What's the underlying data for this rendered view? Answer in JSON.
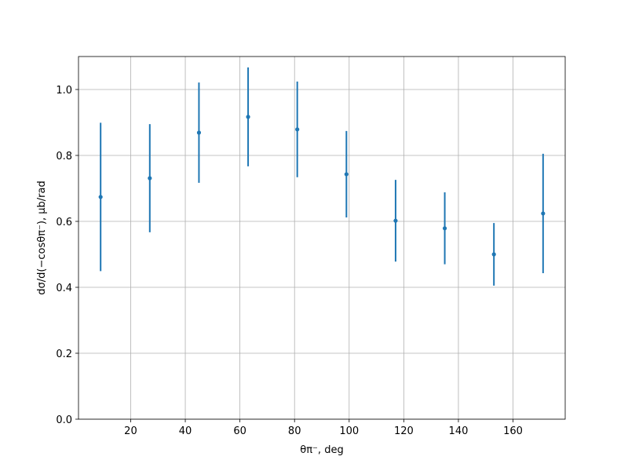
{
  "chart_data": {
    "type": "errorbar",
    "xlabel": "θπ⁻, deg",
    "ylabel": "dσ/d(−cosθπ⁻), μb/rad",
    "x": [
      9,
      27,
      45,
      63,
      81,
      99,
      117,
      135,
      153,
      171
    ],
    "values": [
      0.674,
      0.731,
      0.869,
      0.917,
      0.879,
      0.743,
      0.602,
      0.579,
      0.5,
      0.624
    ],
    "errors": [
      0.225,
      0.164,
      0.152,
      0.15,
      0.145,
      0.131,
      0.124,
      0.109,
      0.095,
      0.181
    ],
    "color": "#1f77b4",
    "xlim": [
      0.9,
      179.1
    ],
    "ylim": [
      0,
      1.1
    ],
    "xticks": [
      20,
      40,
      60,
      80,
      100,
      120,
      140,
      160
    ],
    "yticks": [
      {
        "value": 0,
        "label": "0.0"
      },
      0.2,
      0.4,
      0.6,
      0.8,
      {
        "value": 1,
        "label": "1.0"
      }
    ],
    "grid": true
  }
}
